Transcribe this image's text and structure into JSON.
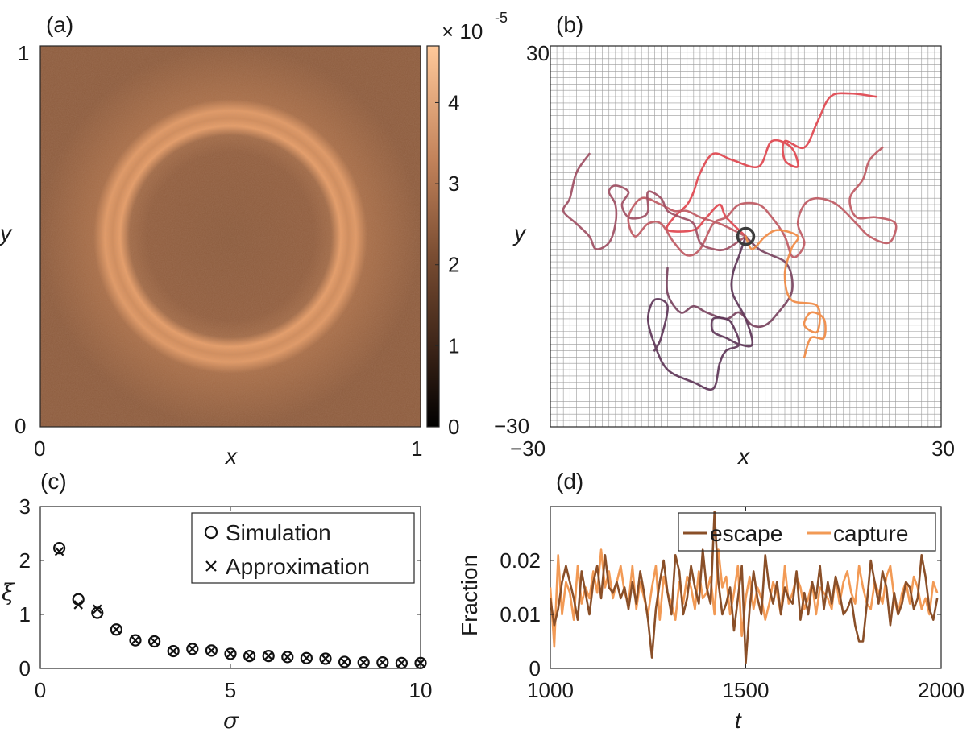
{
  "panels": {
    "a": "(a)",
    "b": "(b)",
    "c": "(c)",
    "d": "(d)"
  },
  "colors": {
    "traj": [
      "#e0464f",
      "#bf5a63",
      "#9e4f63",
      "#7a4460",
      "#5e3658",
      "#f08a44"
    ],
    "center": "#3c3c3c",
    "escape": "#8a4f28",
    "capture": "#f29a55"
  },
  "chart_data": [
    {
      "type": "heatmap",
      "panel": "(a)",
      "description_values": {
        "ring_radius": 0.29,
        "center": [
          0.5,
          0.5
        ]
      },
      "xlabel": "x",
      "ylabel": "y",
      "xlim": [
        0,
        1
      ],
      "ylim": [
        0,
        1
      ],
      "xticks": [
        "0",
        "1"
      ],
      "yticks": [
        "0",
        "1"
      ],
      "colorbar": {
        "range": [
          0,
          4.7
        ],
        "ticks": [
          "0",
          "1",
          "2",
          "3",
          "4"
        ],
        "exponent_prefix": "× 10",
        "exponent": "-5"
      }
    },
    {
      "type": "line",
      "panel": "(b)",
      "xlabel": "x",
      "ylabel": "y",
      "xlim": [
        -30,
        30
      ],
      "ylim": [
        -30,
        30
      ],
      "xticks": [
        "−30",
        "30"
      ],
      "yticks": [
        "−30",
        "30"
      ],
      "grid": true,
      "series": [
        {
          "name": "trajectory-1",
          "color_index": 0,
          "points": [
            [
              20,
              22
            ],
            [
              16,
              22.5
            ],
            [
              13,
              22
            ],
            [
              11,
              18
            ],
            [
              9,
              14
            ],
            [
              6,
              15
            ],
            [
              6,
              12
            ],
            [
              8,
              11
            ],
            [
              7,
              14
            ],
            [
              4,
              15
            ],
            [
              2,
              11
            ],
            [
              -2,
              12
            ],
            [
              -5,
              13
            ],
            [
              -7,
              10
            ],
            [
              -8,
              7
            ],
            [
              -9,
              5
            ],
            [
              -11,
              3
            ],
            [
              -12,
              1
            ],
            [
              -8,
              1
            ],
            [
              -6,
              3
            ],
            [
              -4,
              5
            ],
            [
              -3,
              3
            ],
            [
              0,
              0
            ]
          ]
        },
        {
          "name": "trajectory-2",
          "color_index": 1,
          "points": [
            [
              21,
              14
            ],
            [
              19,
              12
            ],
            [
              18,
              9
            ],
            [
              16,
              6
            ],
            [
              17,
              3
            ],
            [
              20,
              3
            ],
            [
              23,
              2
            ],
            [
              22,
              -1
            ],
            [
              19,
              0
            ],
            [
              17,
              2
            ],
            [
              14,
              5
            ],
            [
              11,
              6
            ],
            [
              9,
              5
            ],
            [
              8,
              2
            ],
            [
              9,
              -1
            ],
            [
              8,
              -3
            ],
            [
              7,
              -3
            ],
            [
              6,
              0
            ],
            [
              4,
              3
            ],
            [
              2,
              5
            ],
            [
              -1,
              5
            ],
            [
              -3,
              3
            ],
            [
              -5,
              2
            ],
            [
              -7,
              -2
            ],
            [
              -9,
              -3
            ],
            [
              -11,
              -1
            ],
            [
              -13,
              2
            ],
            [
              -15,
              2
            ],
            [
              -17,
              0
            ],
            [
              -18,
              3
            ],
            [
              -16,
              6
            ],
            [
              -13,
              5
            ],
            [
              -11,
              4
            ],
            [
              -9,
              4
            ],
            [
              -7,
              3
            ],
            [
              -4,
              2
            ],
            [
              0,
              0
            ]
          ]
        },
        {
          "name": "trajectory-3",
          "color_index": 2,
          "points": [
            [
              -24,
              13
            ],
            [
              -26,
              10
            ],
            [
              -27,
              6
            ],
            [
              -28,
              4
            ],
            [
              -26,
              2
            ],
            [
              -24,
              0
            ],
            [
              -23,
              -2
            ],
            [
              -21,
              -1
            ],
            [
              -20,
              2
            ],
            [
              -20,
              5
            ],
            [
              -21,
              7
            ],
            [
              -20,
              8
            ],
            [
              -18,
              7
            ],
            [
              -19,
              5
            ],
            [
              -18,
              3
            ],
            [
              -16,
              3
            ],
            [
              -15,
              4
            ],
            [
              -15,
              7
            ],
            [
              -13,
              6
            ],
            [
              -12,
              4
            ],
            [
              -10,
              3
            ],
            [
              -8,
              2
            ],
            [
              -7,
              -1
            ],
            [
              -5,
              -2
            ],
            [
              -3,
              -2
            ],
            [
              0,
              0
            ]
          ]
        },
        {
          "name": "trajectory-4",
          "color_index": 3,
          "points": [
            [
              -12,
              -5
            ],
            [
              -12,
              -9
            ],
            [
              -10,
              -12
            ],
            [
              -8,
              -11
            ],
            [
              -6,
              -12
            ],
            [
              -3,
              -13
            ],
            [
              -1,
              -12
            ],
            [
              1,
              -14
            ],
            [
              3,
              -14
            ],
            [
              5,
              -12
            ],
            [
              7,
              -9
            ],
            [
              7,
              -6
            ],
            [
              6,
              -4
            ],
            [
              4,
              -3
            ],
            [
              2,
              -2
            ],
            [
              0,
              0
            ]
          ]
        },
        {
          "name": "trajectory-5",
          "color_index": 4,
          "points": [
            [
              -14,
              -18
            ],
            [
              -13,
              -16
            ],
            [
              -12,
              -11
            ],
            [
              -14,
              -10
            ],
            [
              -15,
              -13
            ],
            [
              -14,
              -17
            ],
            [
              -12,
              -21
            ],
            [
              -8,
              -23
            ],
            [
              -5,
              -24
            ],
            [
              -4,
              -20
            ],
            [
              -3,
              -18
            ],
            [
              -1,
              -17
            ],
            [
              -2,
              -14
            ],
            [
              -3,
              -13
            ],
            [
              -5,
              -13
            ],
            [
              -5,
              -15
            ],
            [
              -3,
              -16
            ],
            [
              -1,
              -17
            ],
            [
              1,
              -17
            ],
            [
              0,
              -13
            ],
            [
              -2,
              -9
            ],
            [
              -2,
              -6
            ],
            [
              -1,
              -3
            ],
            [
              0,
              0
            ]
          ]
        },
        {
          "name": "trajectory-6",
          "color_index": 5,
          "points": [
            [
              9,
              -19
            ],
            [
              10,
              -16
            ],
            [
              12,
              -16
            ],
            [
              12,
              -13
            ],
            [
              10,
              -12
            ],
            [
              9,
              -14
            ],
            [
              11,
              -15
            ],
            [
              11,
              -11
            ],
            [
              7,
              -10
            ],
            [
              6,
              -6
            ],
            [
              7,
              -2
            ],
            [
              8,
              0
            ],
            [
              5,
              1
            ],
            [
              3,
              0
            ],
            [
              1,
              -2
            ],
            [
              0,
              0
            ]
          ]
        }
      ],
      "center_marker": {
        "x": 0,
        "y": 0
      }
    },
    {
      "type": "scatter",
      "panel": "(c)",
      "xlabel": "σ",
      "ylabel": "ξ",
      "xlim": [
        0,
        10
      ],
      "ylim": [
        0,
        3
      ],
      "xticks": [
        "0",
        "5",
        "10"
      ],
      "yticks": [
        "0",
        "1",
        "2",
        "3"
      ],
      "legend_position": "top-right",
      "series": [
        {
          "name": "Simulation",
          "marker": "circle",
          "x": [
            0.5,
            1.0,
            1.5,
            2.0,
            2.5,
            3.0,
            3.5,
            4.0,
            4.5,
            5.0,
            5.5,
            6.0,
            6.5,
            7.0,
            7.5,
            8.0,
            8.5,
            9.0,
            9.5,
            10.0
          ],
          "values": [
            2.23,
            1.28,
            1.03,
            0.72,
            0.52,
            0.5,
            0.32,
            0.36,
            0.33,
            0.27,
            0.23,
            0.23,
            0.21,
            0.19,
            0.18,
            0.12,
            0.11,
            0.11,
            0.1,
            0.1
          ]
        },
        {
          "name": "Approximation",
          "marker": "x",
          "x": [
            0.5,
            1.0,
            1.5,
            2.0,
            2.5,
            3.0,
            3.5,
            4.0,
            4.5,
            5.0,
            5.5,
            6.0,
            6.5,
            7.0,
            7.5,
            8.0,
            8.5,
            9.0,
            9.5,
            10.0
          ],
          "values": [
            2.17,
            1.18,
            1.1,
            0.72,
            0.52,
            0.5,
            0.32,
            0.36,
            0.33,
            0.27,
            0.23,
            0.23,
            0.21,
            0.19,
            0.18,
            0.12,
            0.11,
            0.11,
            0.1,
            0.1
          ]
        }
      ]
    },
    {
      "type": "line",
      "panel": "(d)",
      "xlabel": "t",
      "ylabel": "Fraction",
      "xlim": [
        1000,
        2000
      ],
      "ylim": [
        0,
        0.03
      ],
      "xticks": [
        "1000",
        "1500",
        "2000"
      ],
      "yticks": [
        "0",
        "0.01",
        "0.02"
      ],
      "legend_position": "top-right",
      "x_start": 1000,
      "x_step": 10,
      "series": [
        {
          "name": "escape",
          "color_key": "escape",
          "values": [
            0.013,
            0.008,
            0.011,
            0.016,
            0.019,
            0.016,
            0.013,
            0.009,
            0.018,
            0.014,
            0.01,
            0.016,
            0.019,
            0.013,
            0.021,
            0.015,
            0.014,
            0.016,
            0.013,
            0.015,
            0.011,
            0.016,
            0.012,
            0.018,
            0.014,
            0.009,
            0.002,
            0.011,
            0.016,
            0.02,
            0.014,
            0.01,
            0.021,
            0.018,
            0.01,
            0.013,
            0.019,
            0.015,
            0.012,
            0.022,
            0.015,
            0.012,
            0.029,
            0.016,
            0.01,
            0.012,
            0.015,
            0.007,
            0.013,
            0.019,
            0.001,
            0.011,
            0.018,
            0.013,
            0.01,
            0.021,
            0.015,
            0.012,
            0.016,
            0.01,
            0.015,
            0.013,
            0.012,
            0.018,
            0.009,
            0.014,
            0.01,
            0.016,
            0.013,
            0.019,
            0.011,
            0.016,
            0.012,
            0.017,
            0.014,
            0.01,
            0.011,
            0.013,
            0.008,
            0.005,
            0.005,
            0.012,
            0.02,
            0.016,
            0.012,
            0.018,
            0.015,
            0.008,
            0.014,
            0.01,
            0.012,
            0.016,
            0.015,
            0.011,
            0.013,
            0.021,
            0.017,
            0.011,
            0.009,
            0.013
          ]
        },
        {
          "name": "capture",
          "color_key": "capture",
          "values": [
            0.015,
            0.004,
            0.021,
            0.01,
            0.016,
            0.014,
            0.009,
            0.019,
            0.012,
            0.015,
            0.013,
            0.018,
            0.014,
            0.022,
            0.015,
            0.018,
            0.013,
            0.016,
            0.019,
            0.014,
            0.012,
            0.019,
            0.011,
            0.016,
            0.013,
            0.01,
            0.015,
            0.019,
            0.009,
            0.017,
            0.014,
            0.012,
            0.009,
            0.016,
            0.012,
            0.017,
            0.015,
            0.011,
            0.018,
            0.013,
            0.014,
            0.017,
            0.01,
            0.022,
            0.015,
            0.017,
            0.01,
            0.014,
            0.019,
            0.006,
            0.013,
            0.017,
            0.011,
            0.015,
            0.013,
            0.009,
            0.012,
            0.016,
            0.014,
            0.01,
            0.019,
            0.012,
            0.014,
            0.017,
            0.015,
            0.011,
            0.013,
            0.016,
            0.01,
            0.015,
            0.014,
            0.013,
            0.011,
            0.017,
            0.012,
            0.016,
            0.018,
            0.014,
            0.012,
            0.019,
            0.015,
            0.012,
            0.011,
            0.016,
            0.014,
            0.012,
            0.017,
            0.019,
            0.013,
            0.01,
            0.014,
            0.016,
            0.012,
            0.017,
            0.015,
            0.011,
            0.013,
            0.01,
            0.016,
            0.014
          ]
        }
      ]
    }
  ]
}
